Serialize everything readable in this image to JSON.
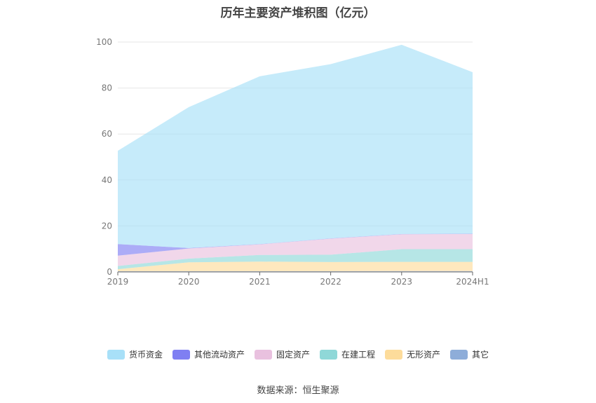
{
  "chart_data": {
    "type": "area",
    "stacked": true,
    "title": "历年主要资产堆积图（亿元）",
    "categories": [
      "2019",
      "2020",
      "2021",
      "2022",
      "2023",
      "2024H1"
    ],
    "ylim": [
      0,
      100
    ],
    "yticks": [
      0,
      20,
      40,
      60,
      80,
      100
    ],
    "grid": true,
    "legend_position": "bottom",
    "series": [
      {
        "name": "其它",
        "color": "#8eadd9",
        "values": [
          0.3,
          0.3,
          0.3,
          0.3,
          0.4,
          0.4
        ]
      },
      {
        "name": "无形资产",
        "color": "#fddc9b",
        "values": [
          0.9,
          3.9,
          4.2,
          4.0,
          4.0,
          4.0
        ]
      },
      {
        "name": "在建工程",
        "color": "#8fd8d8",
        "values": [
          1.4,
          1.6,
          2.9,
          3.2,
          5.5,
          5.5
        ]
      },
      {
        "name": "固定资产",
        "color": "#e9c1df",
        "values": [
          4.5,
          4.4,
          4.6,
          7.0,
          6.5,
          6.6
        ]
      },
      {
        "name": "其他流动资产",
        "color": "#7f7ff2",
        "values": [
          5.0,
          0.2,
          0.1,
          0.1,
          0.1,
          0.1
        ]
      },
      {
        "name": "货币资金",
        "color": "#a8e0f8",
        "values": [
          40.6,
          61.3,
          73.0,
          75.8,
          82.3,
          70.3
        ]
      }
    ],
    "legend_order": [
      "货币资金",
      "其他流动资产",
      "固定资产",
      "在建工程",
      "无形资产",
      "其它"
    ]
  },
  "footer": {
    "source": "数据来源：恒生聚源"
  }
}
